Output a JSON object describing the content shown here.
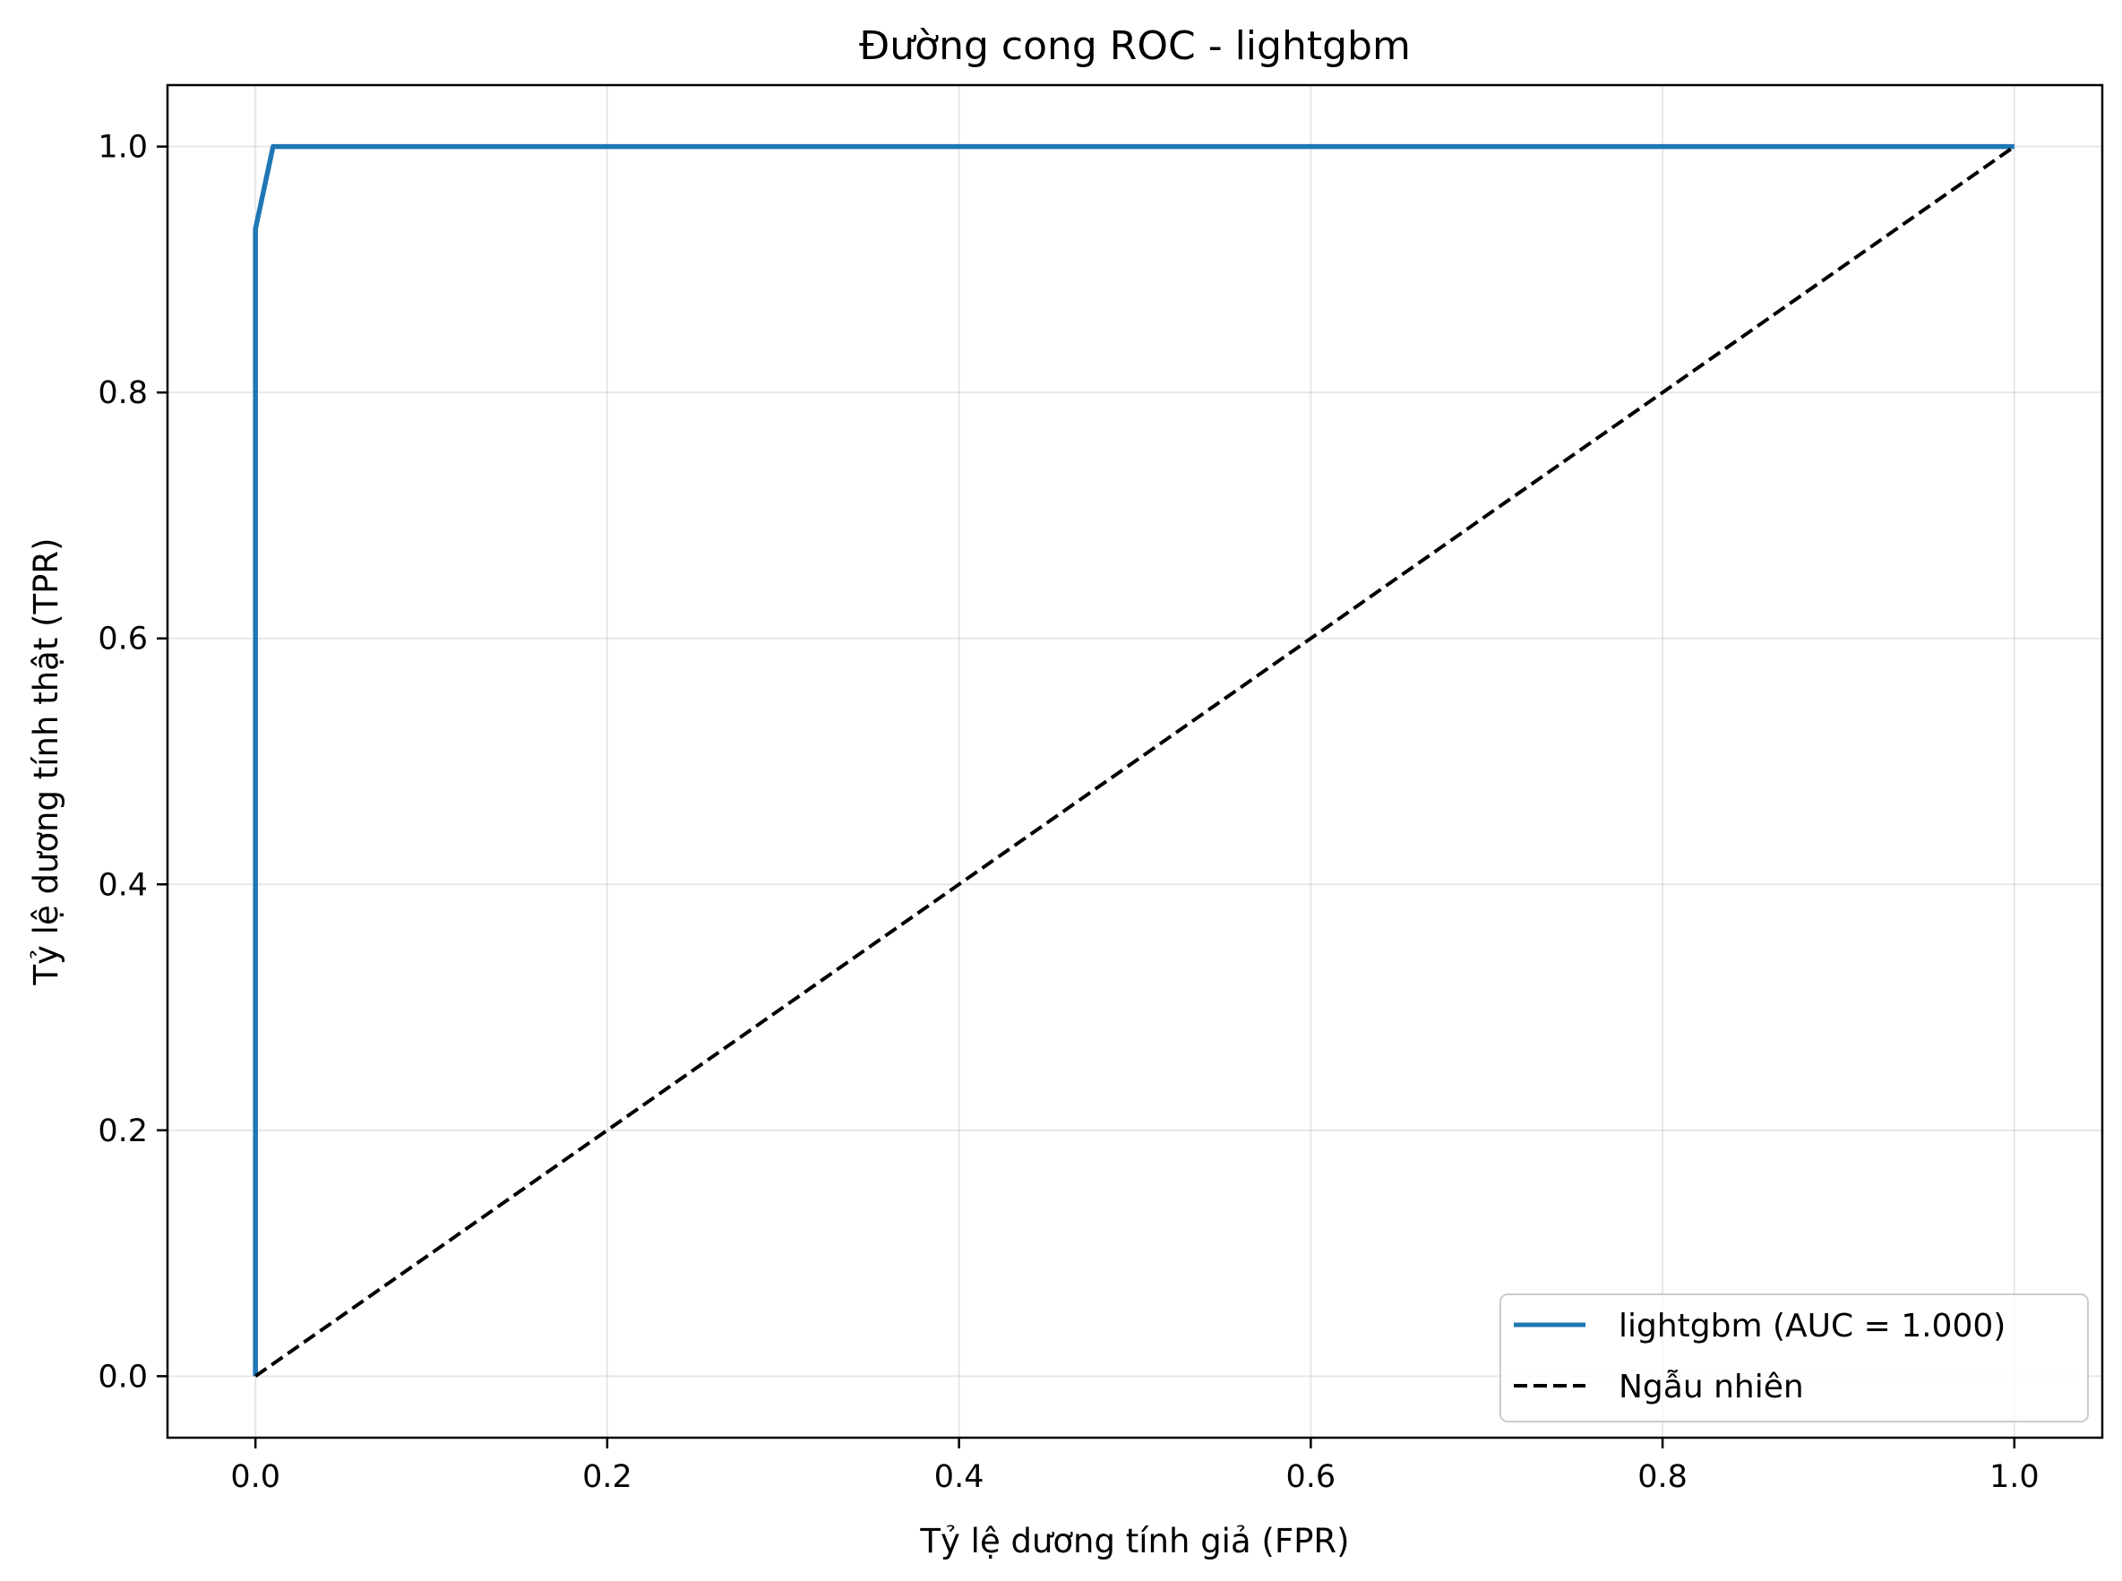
{
  "chart_data": {
    "type": "line",
    "title": "Đường cong ROC - lightgbm",
    "xlabel": "Tỷ lệ dương tính giả (FPR)",
    "ylabel": "Tỷ lệ dương tính thật (TPR)",
    "xlim": [
      -0.05,
      1.05
    ],
    "ylim": [
      -0.05,
      1.05
    ],
    "xticks": [
      0.0,
      0.2,
      0.4,
      0.6,
      0.8,
      1.0
    ],
    "yticks": [
      0.0,
      0.2,
      0.4,
      0.6,
      0.8,
      1.0
    ],
    "xtick_labels": [
      "0.0",
      "0.2",
      "0.4",
      "0.6",
      "0.8",
      "1.0"
    ],
    "ytick_labels": [
      "0.0",
      "0.2",
      "0.4",
      "0.6",
      "0.8",
      "1.0"
    ],
    "grid": true,
    "legend_position": "lower-right",
    "series": [
      {
        "name": "lightgbm (AUC = 1.000)",
        "color": "#1f77b4",
        "style": "solid",
        "x": [
          0.0,
          0.0,
          0.01,
          1.0
        ],
        "y": [
          0.0,
          0.933,
          1.0,
          1.0
        ]
      },
      {
        "name": "Ngẫu nhiên",
        "color": "#000000",
        "style": "dashed",
        "x": [
          0.0,
          1.0
        ],
        "y": [
          0.0,
          1.0
        ]
      }
    ]
  }
}
